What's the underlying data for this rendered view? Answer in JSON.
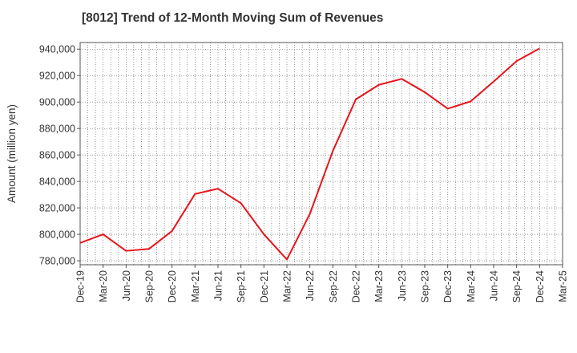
{
  "chart_data": {
    "type": "line",
    "title": "[8012]  Trend of 12-Month Moving Sum of Revenues",
    "xlabel": "",
    "ylabel": "Amount (million yen)",
    "ylim": [
      777000,
      945000
    ],
    "y_ticks": [
      780000,
      800000,
      820000,
      840000,
      860000,
      880000,
      900000,
      920000,
      940000
    ],
    "y_tick_labels": [
      "780,000",
      "800,000",
      "820,000",
      "840,000",
      "860,000",
      "880,000",
      "900,000",
      "920,000",
      "940,000"
    ],
    "x_tick_labels": [
      "Dec-19",
      "Mar-20",
      "Jun-20",
      "Sep-20",
      "Dec-20",
      "Mar-21",
      "Jun-21",
      "Sep-21",
      "Dec-21",
      "Mar-22",
      "Jun-22",
      "Sep-22",
      "Dec-22",
      "Mar-23",
      "Jun-23",
      "Sep-23",
      "Dec-23",
      "Mar-24",
      "Jun-24",
      "Sep-24",
      "Dec-24",
      "Mar-25"
    ],
    "grid": true,
    "series": [
      {
        "color": "#e8141b",
        "x": [
          "Dec-19",
          "Mar-20",
          "Jun-20",
          "Sep-20",
          "Dec-20",
          "Mar-21",
          "Jun-21",
          "Sep-21",
          "Dec-21",
          "Mar-22",
          "Jun-22",
          "Sep-22",
          "Dec-22",
          "Mar-23",
          "Jun-23",
          "Sep-23",
          "Dec-23",
          "Mar-24",
          "Jun-24",
          "Sep-24",
          "Dec-24"
        ],
        "values": [
          793500,
          800000,
          787500,
          789000,
          802500,
          830500,
          834500,
          823500,
          800000,
          781000,
          815500,
          863000,
          902000,
          913000,
          917500,
          907500,
          895000,
          900500,
          915500,
          931000,
          940500
        ]
      }
    ]
  }
}
